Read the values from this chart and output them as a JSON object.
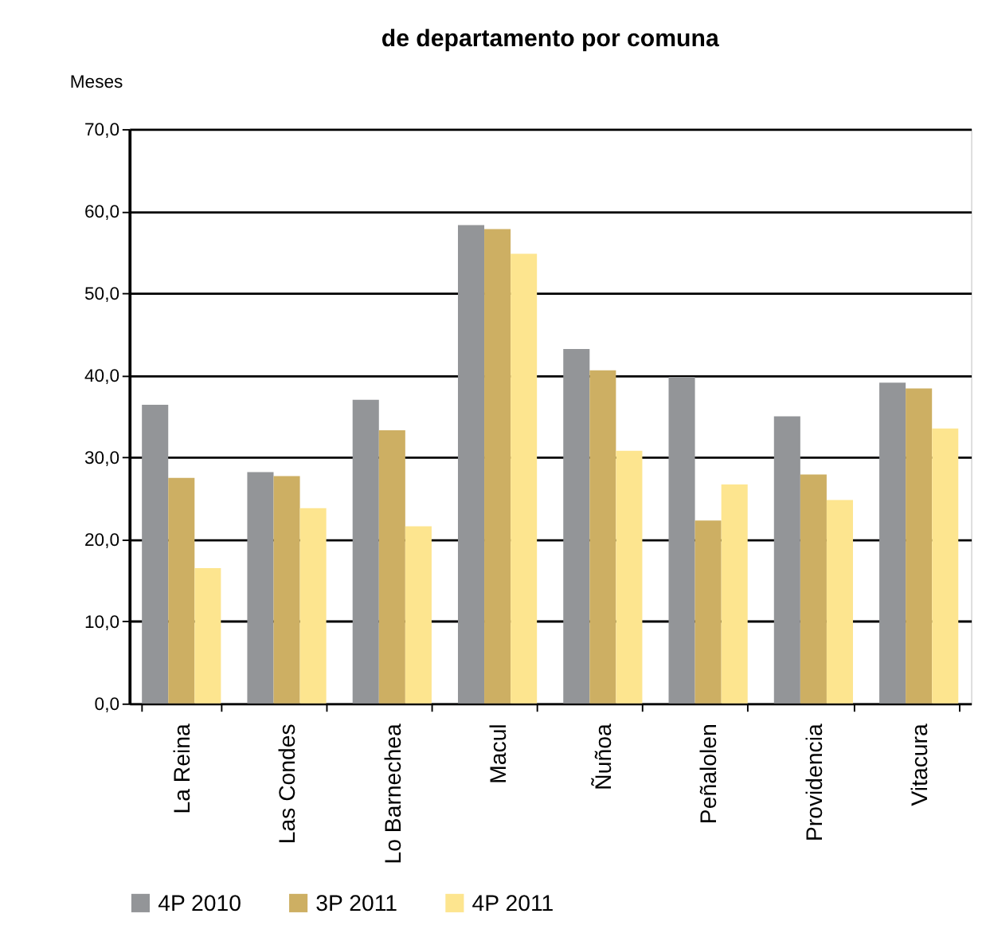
{
  "chart_data": {
    "type": "bar",
    "title": "de departamento por comuna",
    "ylabel": "Meses",
    "categories": [
      "La Reina",
      "Las Condes",
      "Lo Barnechea",
      "Macul",
      "Ñuñoa",
      "Peñalolen",
      "Providencia",
      "Vitacura"
    ],
    "series": [
      {
        "name": "4P 2010",
        "color": "#939598",
        "values": [
          36.4,
          28.2,
          37.0,
          58.3,
          43.2,
          39.8,
          35.0,
          39.1
        ]
      },
      {
        "name": "3P 2011",
        "color": "#cdaf63",
        "values": [
          27.5,
          27.7,
          33.3,
          57.8,
          40.6,
          22.3,
          27.9,
          38.4
        ]
      },
      {
        "name": "4P 2011",
        "color": "#fde58f",
        "values": [
          16.5,
          23.8,
          21.6,
          54.8,
          30.8,
          26.7,
          24.8,
          33.5
        ]
      }
    ],
    "ylim": [
      0,
      70
    ],
    "yticks": [
      {
        "value": 0,
        "label": "0,0"
      },
      {
        "value": 10,
        "label": "10,0"
      },
      {
        "value": 20,
        "label": "20,0"
      },
      {
        "value": 30,
        "label": "30,0"
      },
      {
        "value": 40,
        "label": "40,0"
      },
      {
        "value": 50,
        "label": "50,0"
      },
      {
        "value": 60,
        "label": "60,0"
      },
      {
        "value": 70,
        "label": "70,0"
      }
    ],
    "grid": "y",
    "legend": "bottom"
  }
}
